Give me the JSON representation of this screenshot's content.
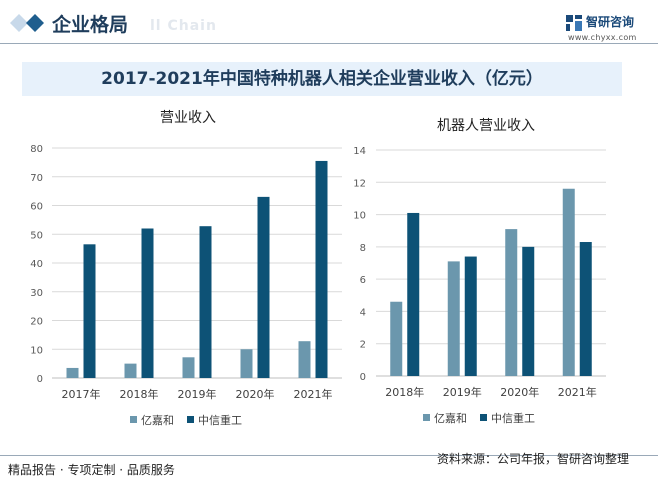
{
  "header": {
    "section_title": "企业格局",
    "ghost_text": "ll Chain",
    "logo_cn": "智研咨询",
    "logo_url": "www.chyxx.com"
  },
  "footer": {
    "left": "精品报告 · 专项定制 · 品质服务",
    "source": "资料来源：公司年报，智研咨询整理"
  },
  "colors": {
    "light": "#6b97ad",
    "dark": "#0d5276",
    "title_band": "#e7f1fb",
    "heading": "#1f3d5c"
  },
  "chart_data": [
    {
      "type": "bar",
      "title": "2017-2021年中国特种机器人相关企业营业收入（亿元）",
      "subtitle": "营业收入",
      "categories": [
        "2017年",
        "2018年",
        "2019年",
        "2020年",
        "2021年"
      ],
      "ylim": [
        0,
        80
      ],
      "yticks": [
        0,
        10,
        20,
        30,
        40,
        50,
        60,
        70,
        80
      ],
      "legend": "bottom",
      "series": [
        {
          "name": "亿嘉和",
          "values": [
            3.5,
            5.0,
            7.2,
            10.0,
            12.8
          ]
        },
        {
          "name": "中信重工",
          "values": [
            46.5,
            52.0,
            52.8,
            63.0,
            75.5
          ]
        }
      ]
    },
    {
      "type": "bar",
      "subtitle": "机器人营业收入",
      "categories": [
        "2018年",
        "2019年",
        "2020年",
        "2021年"
      ],
      "ylim": [
        0,
        14
      ],
      "yticks": [
        0,
        2,
        4,
        6,
        8,
        10,
        12,
        14
      ],
      "legend": "bottom",
      "series": [
        {
          "name": "亿嘉和",
          "values": [
            4.6,
            7.1,
            9.1,
            11.6
          ]
        },
        {
          "name": "中信重工",
          "values": [
            10.1,
            7.4,
            8.0,
            8.3
          ]
        }
      ]
    }
  ]
}
